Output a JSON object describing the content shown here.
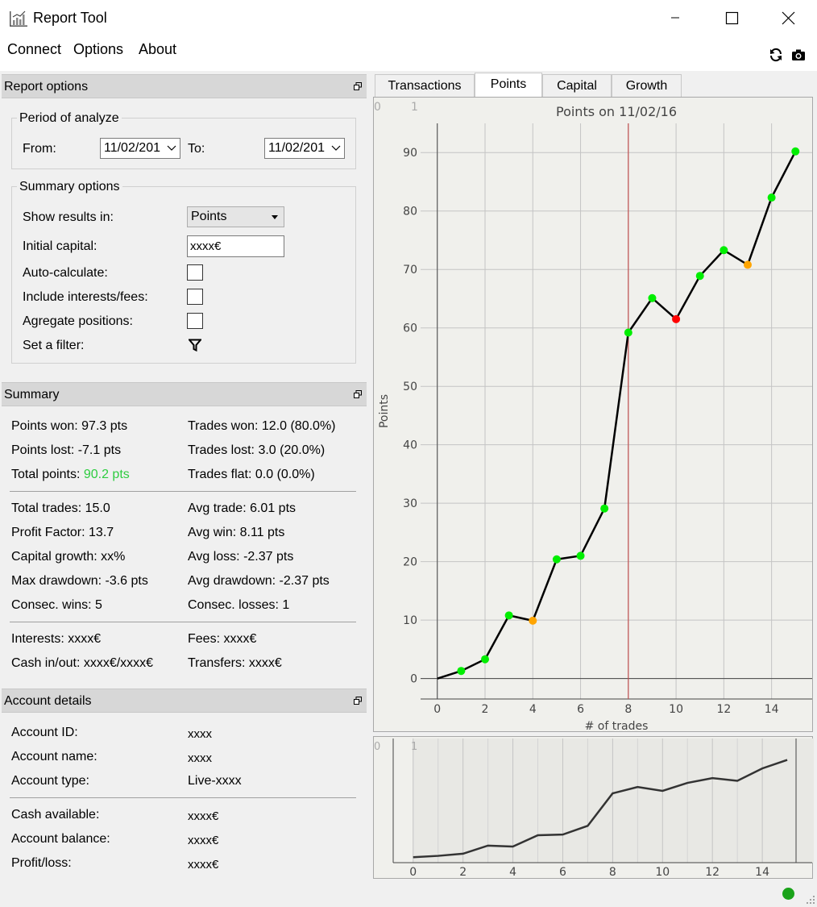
{
  "window": {
    "title": "Report Tool"
  },
  "menu": {
    "items": [
      "Connect",
      "Options",
      "About"
    ]
  },
  "report_options": {
    "header": "Report options",
    "period": {
      "title": "Period of analyze",
      "from_label": "From:",
      "from_value": "11/02/201",
      "to_label": "To:",
      "to_value": "11/02/201"
    },
    "summary_options": {
      "title": "Summary options",
      "show_results_label": "Show results in:",
      "show_results_value": "Points",
      "initial_capital_label": "Initial capital:",
      "initial_capital_value": "xxxx€",
      "auto_calculate_label": "Auto-calculate:",
      "include_fees_label": "Include interests/fees:",
      "aggregate_label": "Agregate positions:",
      "filter_label": "Set a filter:"
    }
  },
  "summary": {
    "header": "Summary",
    "points_won": "Points won: 97.3 pts",
    "trades_won": "Trades won: 12.0 (80.0%)",
    "points_lost": "Points lost: -7.1 pts",
    "trades_lost": "Trades lost: 3.0 (20.0%)",
    "total_points_label": "Total points: ",
    "total_points_value": "90.2 pts",
    "trades_flat": "Trades flat: 0.0 (0.0%)",
    "total_trades": "Total trades: 15.0",
    "avg_trade": "Avg trade: 6.01 pts",
    "profit_factor": "Profit Factor: 13.7",
    "avg_win": "Avg win: 8.11 pts",
    "capital_growth": "Capital growth: xx%",
    "avg_loss": "Avg loss: -2.37 pts",
    "max_drawdown": "Max drawdown: -3.6 pts",
    "avg_drawdown": "Avg drawdown: -2.37 pts",
    "consec_wins": "Consec. wins: 5",
    "consec_losses": "Consec. losses: 1",
    "interests": "Interests: xxxx€",
    "fees": "Fees: xxxx€",
    "cash_inout": "Cash in/out: xxxx€/xxxx€",
    "transfers": "Transfers: xxxx€"
  },
  "account": {
    "header": "Account details",
    "id_label": "Account ID:",
    "id_value": "xxxx",
    "name_label": "Account name:",
    "name_value": "xxxx",
    "type_label": "Account type:",
    "type_value": "Live-xxxx",
    "cash_label": "Cash available:",
    "cash_value": "xxxx€",
    "balance_label": "Account balance:",
    "balance_value": "xxxx€",
    "pl_label": "Profit/loss:",
    "pl_value": "xxxx€"
  },
  "tabs": [
    "Transactions",
    "Points",
    "Capital",
    "Growth"
  ],
  "active_tab": "Points",
  "chart_data": [
    {
      "type": "line",
      "title": "Points on 11/02/16",
      "xlabel": "# of trades",
      "ylabel": "Points",
      "x": [
        0,
        1,
        2,
        3,
        4,
        5,
        6,
        7,
        8,
        9,
        10,
        11,
        12,
        13,
        14,
        15
      ],
      "values": [
        0,
        1.3,
        3.3,
        10.8,
        9.9,
        20.4,
        21.0,
        29.1,
        59.2,
        65.1,
        61.5,
        68.9,
        73.3,
        70.8,
        82.3,
        90.2
      ],
      "point_colors": [
        "none",
        "#00ee00",
        "#00ee00",
        "#00ee00",
        "#ffa500",
        "#00ee00",
        "#00ee00",
        "#00ee00",
        "#00ee00",
        "#00ee00",
        "#ff0000",
        "#00ee00",
        "#00ee00",
        "#ffa500",
        "#00ee00",
        "#00ee00"
      ],
      "xlim": [
        -0.7,
        15.7
      ],
      "ylim": [
        -3.5,
        95
      ],
      "x_ticks": [
        0,
        2,
        4,
        6,
        8,
        10,
        12,
        14
      ],
      "y_ticks": [
        0,
        10,
        20,
        30,
        40,
        50,
        60,
        70,
        80,
        90
      ],
      "marker_x": 8,
      "marker_color": "#c05050",
      "corner_labels": [
        "0",
        "1"
      ],
      "grid": true
    },
    {
      "type": "line",
      "title": "",
      "x": [
        0,
        1,
        2,
        3,
        4,
        5,
        6,
        7,
        8,
        9,
        10,
        11,
        12,
        13,
        14,
        15
      ],
      "values": [
        0,
        1.3,
        3.3,
        10.8,
        9.9,
        20.4,
        21.0,
        29.1,
        59.2,
        65.1,
        61.5,
        68.9,
        73.3,
        70.8,
        82.3,
        90.2
      ],
      "xlim": [
        -0.8,
        16.0
      ],
      "ylim": [
        -5,
        110
      ],
      "x_ticks": [
        0,
        2,
        4,
        6,
        8,
        10,
        12,
        14
      ],
      "corner_labels": [
        "0",
        "1"
      ],
      "grid": true
    }
  ]
}
